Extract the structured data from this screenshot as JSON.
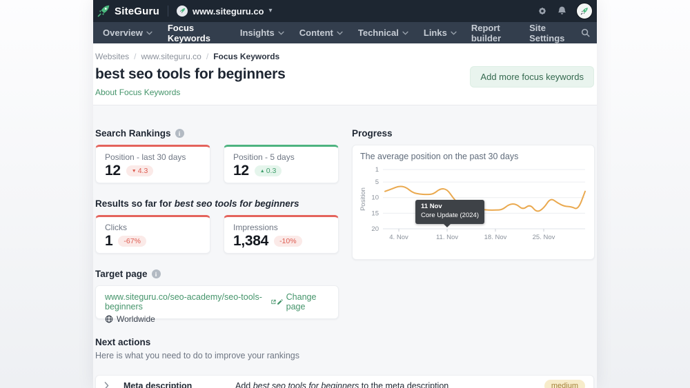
{
  "header": {
    "brand": "SiteGuru",
    "site": "www.siteguru.co"
  },
  "nav": {
    "items": [
      {
        "label": "Overview",
        "dropdown": true
      },
      {
        "label": "Focus Keywords",
        "dropdown": false
      },
      {
        "label": "Insights",
        "dropdown": true
      },
      {
        "label": "Content",
        "dropdown": true
      },
      {
        "label": "Technical",
        "dropdown": true
      },
      {
        "label": "Links",
        "dropdown": true
      }
    ],
    "right": [
      {
        "label": "Report builder"
      },
      {
        "label": "Site Settings"
      }
    ]
  },
  "breadcrumb": {
    "separator": "/",
    "items": [
      "Websites",
      "www.siteguru.co",
      "Focus Keywords"
    ]
  },
  "page": {
    "title": "best seo tools for beginners",
    "about_link": "About Focus Keywords",
    "add_button": "Add more focus keywords"
  },
  "search_rankings": {
    "heading": "Search Rankings",
    "cards": [
      {
        "label": "Position - last 30 days",
        "value": "12",
        "arrow": "▼",
        "delta": "4.3",
        "tone": "negative",
        "accent": "#e4635c"
      },
      {
        "label": "Position - 5 days",
        "value": "12",
        "arrow": "▲",
        "delta": "0.3",
        "tone": "positive",
        "accent": "#4db380"
      }
    ]
  },
  "progress": {
    "heading": "Progress"
  },
  "chart_data": {
    "type": "line",
    "title": "The average position on the past 30 days",
    "ylabel": "Position",
    "y_inverted": true,
    "ylim": [
      1,
      20
    ],
    "yticks": [
      1,
      5,
      10,
      15,
      20
    ],
    "dates": [
      "2. Nov",
      "3. Nov",
      "4. Nov",
      "5. Nov",
      "6. Nov",
      "7. Nov",
      "8. Nov",
      "9. Nov",
      "10. Nov",
      "11. Nov",
      "12. Nov",
      "13. Nov",
      "14. Nov",
      "15. Nov",
      "16. Nov",
      "17. Nov",
      "18. Nov",
      "19. Nov",
      "20. Nov",
      "21. Nov",
      "22. Nov",
      "23. Nov",
      "24. Nov",
      "25. Nov",
      "26. Nov",
      "27. Nov",
      "28. Nov",
      "29. Nov",
      "30. Nov",
      "1. Dec"
    ],
    "values": [
      8,
      7.2,
      6.3,
      6.6,
      8.4,
      8.9,
      9,
      8.9,
      7.1,
      7.3,
      10.5,
      12.7,
      13,
      13.1,
      13.8,
      14,
      14,
      13.9,
      12.1,
      12,
      13.9,
      12.1,
      14.8,
      13.4,
      10.1,
      11.7,
      12.8,
      12.9,
      13.9,
      8
    ],
    "xticks": [
      {
        "label": "4. Nov",
        "index": 2
      },
      {
        "label": "11. Nov",
        "index": 9
      },
      {
        "label": "18. Nov",
        "index": 16
      },
      {
        "label": "25. Nov",
        "index": 23
      }
    ],
    "line_color": "#eaa94f",
    "grid": true,
    "annotation": {
      "index": 9,
      "line1": "11 Nov",
      "line2": "Core Update (2024)"
    }
  },
  "results": {
    "heading_prefix": "Results so far for ",
    "keyword": "best seo tools for beginners",
    "cards": [
      {
        "label": "Clicks",
        "value": "1",
        "delta": "-67%",
        "tone": "negative"
      },
      {
        "label": "Impressions",
        "value": "1,384",
        "delta": "-10%",
        "tone": "negative"
      }
    ]
  },
  "target_page": {
    "heading": "Target page",
    "url": "www.siteguru.co/seo-academy/seo-tools-beginners",
    "change_link": "Change page",
    "scope": "Worldwide"
  },
  "next_actions": {
    "heading": "Next actions",
    "subtitle": "Here is what you need to do to improve your rankings",
    "rows": [
      {
        "title": "Meta description",
        "action_prefix": "Add ",
        "action_keyword": "best seo tools for beginners",
        "action_suffix": " to the meta description",
        "priority": "medium"
      }
    ]
  },
  "colors": {
    "brand_green": "#4cba7f",
    "link_green": "#44946a",
    "negative_red": "#e4635c",
    "positive_green": "#4db380",
    "chart_line": "#eaa94f",
    "priority_badge_bg": "#f7ecca",
    "priority_badge_text": "#a5813a"
  }
}
